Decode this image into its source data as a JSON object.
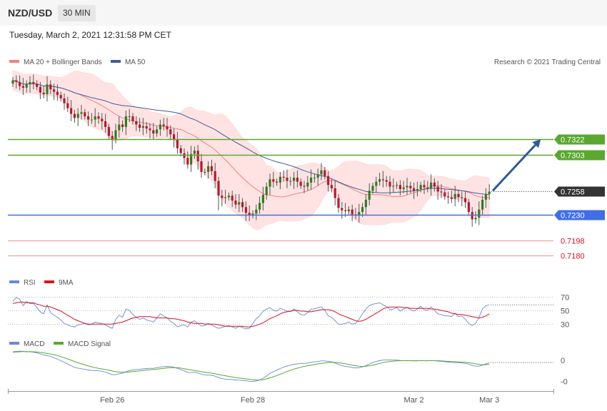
{
  "header": {
    "symbol": "NZD/USD",
    "timeframe": "30 MIN",
    "datetime": "Tuesday, March 2, 2021 12:31:58 PM CET",
    "credit": "Research © 2021 Trading Central"
  },
  "colors": {
    "ma20": "#f08080",
    "bollinger_fill": "#ffe3e3",
    "ma50": "#3a5f9a",
    "resistance": "#5aa82e",
    "support": "#3f6ee8",
    "minor_support": "#f5a0a0",
    "candle_up": "#2f7d1f",
    "candle_down": "#c0152a",
    "arrow": "#2e5b9b",
    "rsi": "#6a87d8",
    "rsi_ma": "#d8141c",
    "macd": "#6a87d8",
    "macd_signal": "#5aa82e"
  },
  "chart_data": [
    {
      "type": "candlestick",
      "legend": [
        "MA 20 + Bollinger Bands",
        "MA 50"
      ],
      "ylim": [
        0.7165,
        0.7405
      ],
      "x_ticks": [
        {
          "label": "Feb 26",
          "index": 29
        },
        {
          "label": "Feb 28",
          "index": 70
        },
        {
          "label": "Mar 2",
          "index": 117
        },
        {
          "label": "Mar 3",
          "index": 139
        }
      ],
      "close": [
        0.7394,
        0.7392,
        0.7387,
        0.7385,
        0.7389,
        0.7392,
        0.739,
        0.7386,
        0.7379,
        0.7377,
        0.7389,
        0.7383,
        0.738,
        0.7376,
        0.7372,
        0.7366,
        0.736,
        0.7353,
        0.7348,
        0.7353,
        0.7355,
        0.735,
        0.7346,
        0.7346,
        0.735,
        0.7347,
        0.7344,
        0.7337,
        0.7326,
        0.7322,
        0.7333,
        0.734,
        0.7337,
        0.735,
        0.735,
        0.7344,
        0.734,
        0.7336,
        0.7338,
        0.7335,
        0.7333,
        0.7329,
        0.7334,
        0.734,
        0.7338,
        0.7334,
        0.7328,
        0.7322,
        0.7311,
        0.7305,
        0.7299,
        0.7291,
        0.7304,
        0.7308,
        0.7295,
        0.7282,
        0.7282,
        0.7289,
        0.7283,
        0.7271,
        0.7253,
        0.725,
        0.7251,
        0.7253,
        0.7247,
        0.7242,
        0.7245,
        0.7239,
        0.7232,
        0.7229,
        0.7231,
        0.7236,
        0.7244,
        0.7254,
        0.7264,
        0.7273,
        0.727,
        0.7269,
        0.7276,
        0.7275,
        0.7271,
        0.7271,
        0.7275,
        0.727,
        0.7265,
        0.7264,
        0.7269,
        0.7275,
        0.7275,
        0.7279,
        0.7284,
        0.7277,
        0.7266,
        0.7262,
        0.725,
        0.7238,
        0.7235,
        0.7234,
        0.7236,
        0.723,
        0.7229,
        0.7233,
        0.7239,
        0.7248,
        0.7259,
        0.7265,
        0.727,
        0.7273,
        0.7272,
        0.727,
        0.7264,
        0.7265,
        0.7266,
        0.7261,
        0.7263,
        0.7265,
        0.7262,
        0.7259,
        0.7261,
        0.7266,
        0.7263,
        0.7262,
        0.7269,
        0.7264,
        0.7258,
        0.7257,
        0.7252,
        0.7251,
        0.7249,
        0.7255,
        0.7251,
        0.725,
        0.7245,
        0.7233,
        0.7224,
        0.7226,
        0.7236,
        0.7248,
        0.7255,
        0.7258
      ],
      "open_first": 0.739,
      "series": [
        {
          "name": "MA 20 + Bollinger Bands"
        },
        {
          "name": "MA 50"
        }
      ],
      "levels": [
        {
          "value": 0.7322,
          "label": "0.7322",
          "kind": "resistance"
        },
        {
          "value": 0.7303,
          "label": "0.7303",
          "kind": "resistance"
        },
        {
          "value": 0.7258,
          "label": "0.7258",
          "kind": "last"
        },
        {
          "value": 0.723,
          "label": "0.7230",
          "kind": "support"
        },
        {
          "value": 0.7198,
          "label": "0.7198",
          "kind": "minor"
        },
        {
          "value": 0.718,
          "label": "0.7180",
          "kind": "minor"
        }
      ],
      "arrow": {
        "from_index": 140,
        "from_value": 0.7259,
        "to_index": 154,
        "to_value": 0.7322
      }
    },
    {
      "type": "line",
      "legend": [
        "RSI",
        "9MA"
      ],
      "ylim": [
        22,
        78
      ],
      "y_ticks": [
        70,
        50,
        30
      ],
      "series": [
        {
          "name": "RSI",
          "values": [
            63,
            69,
            66,
            57,
            63,
            60,
            60,
            54,
            48,
            45,
            58,
            47,
            43,
            40,
            36,
            31,
            29,
            27,
            26,
            29,
            30,
            31,
            29,
            30,
            33,
            32,
            31,
            29,
            26,
            24,
            37,
            43,
            40,
            52,
            50,
            44,
            40,
            37,
            39,
            36,
            35,
            33,
            39,
            45,
            42,
            39,
            34,
            31,
            26,
            28,
            29,
            26,
            33,
            35,
            31,
            27,
            28,
            31,
            29,
            26,
            24,
            25,
            27,
            28,
            26,
            24,
            27,
            25,
            23,
            24,
            31,
            38,
            42,
            49,
            52,
            54,
            50,
            49,
            53,
            51,
            49,
            48,
            52,
            48,
            44,
            43,
            47,
            52,
            52,
            54,
            55,
            50,
            42,
            40,
            35,
            30,
            30,
            31,
            33,
            30,
            31,
            37,
            45,
            52,
            57,
            59,
            60,
            61,
            58,
            56,
            51,
            52,
            54,
            49,
            52,
            54,
            51,
            49,
            52,
            56,
            51,
            50,
            55,
            50,
            45,
            44,
            42,
            42,
            41,
            46,
            41,
            42,
            37,
            31,
            28,
            31,
            40,
            52,
            57,
            58
          ]
        },
        {
          "name": "9MA",
          "values": [
            60,
            61,
            62,
            62,
            61,
            61,
            61,
            59,
            58,
            56,
            56,
            55,
            53,
            51,
            49,
            46,
            43,
            40,
            37,
            35,
            33,
            31,
            30,
            30,
            30,
            30,
            30,
            30,
            30,
            30,
            31,
            32,
            33,
            35,
            37,
            39,
            40,
            41,
            41,
            41,
            41,
            40,
            39,
            39,
            39,
            39,
            38,
            38,
            37,
            36,
            35,
            33,
            32,
            31,
            31,
            31,
            30,
            30,
            30,
            30,
            29,
            28,
            27,
            27,
            27,
            27,
            27,
            27,
            26,
            26,
            27,
            28,
            30,
            32,
            35,
            38,
            40,
            42,
            45,
            47,
            48,
            49,
            50,
            50,
            49,
            49,
            48,
            48,
            49,
            50,
            51,
            51,
            51,
            50,
            48,
            45,
            43,
            41,
            39,
            37,
            35,
            34,
            35,
            37,
            40,
            43,
            46,
            49,
            52,
            54,
            55,
            55,
            55,
            55,
            54,
            54,
            53,
            53,
            53,
            53,
            53,
            53,
            52,
            52,
            51,
            50,
            49,
            48,
            46,
            45,
            44,
            44,
            43,
            42,
            41,
            40,
            39,
            40,
            42,
            45
          ]
        }
      ]
    },
    {
      "type": "line",
      "legend": [
        "MACD",
        "MACD Signal"
      ],
      "ylim": [
        -0.00135,
        0.0005
      ],
      "y_ticks": [
        {
          "value": 0,
          "label": "0"
        },
        {
          "value": -0.001,
          "label": "-0"
        }
      ],
      "series": [
        {
          "name": "MACD",
          "values": [
            0.0004,
            0.00042,
            0.00043,
            0.00042,
            0.0004,
            0.0004,
            0.00038,
            0.00035,
            0.0003,
            0.00025,
            0.00022,
            0.00018,
            0.00012,
            5e-05,
            -2e-05,
            -0.0001,
            -0.00018,
            -0.00026,
            -0.00033,
            -0.00037,
            -0.0004,
            -0.00043,
            -0.00046,
            -0.00048,
            -0.00049,
            -0.0005,
            -0.00052,
            -0.00056,
            -0.00062,
            -0.00068,
            -0.00068,
            -0.00064,
            -0.00061,
            -0.00054,
            -0.00049,
            -0.00046,
            -0.00044,
            -0.00043,
            -0.0004,
            -0.00039,
            -0.00038,
            -0.00038,
            -0.00035,
            -0.00032,
            -0.0003,
            -0.00029,
            -0.0003,
            -0.00033,
            -0.00038,
            -0.00044,
            -0.0005,
            -0.00057,
            -0.00058,
            -0.00057,
            -0.0006,
            -0.00065,
            -0.00069,
            -0.0007,
            -0.00071,
            -0.00075,
            -0.00082,
            -0.00087,
            -0.00089,
            -0.0009,
            -0.00091,
            -0.00093,
            -0.00094,
            -0.00095,
            -0.00097,
            -0.00099,
            -0.001,
            -0.00098,
            -0.00093,
            -0.00085,
            -0.00074,
            -0.00062,
            -0.00054,
            -0.00047,
            -0.00039,
            -0.00032,
            -0.00027,
            -0.00023,
            -0.00019,
            -0.00017,
            -0.00016,
            -0.00015,
            -0.00013,
            -0.0001,
            -8e-05,
            -6e-05,
            -3e-05,
            -3e-05,
            -5e-05,
            -8e-05,
            -0.00013,
            -0.0002,
            -0.00025,
            -0.00029,
            -0.00031,
            -0.00034,
            -0.00036,
            -0.00035,
            -0.00031,
            -0.00025,
            -0.00018,
            -0.00011,
            -6e-05,
            -2e-05,
            1e-05,
            2e-05,
            1e-05,
            1e-05,
            1e-05,
            -1e-05,
            -2e-05,
            -1e-05,
            -2e-05,
            -3e-05,
            -3e-05,
            -1e-05,
            -2e-05,
            -3e-05,
            -1e-05,
            -2e-05,
            -4e-05,
            -5e-05,
            -7e-05,
            -9e-05,
            -0.00011,
            -0.00011,
            -0.00012,
            -0.00013,
            -0.00015,
            -0.00019,
            -0.00025,
            -0.00028,
            -0.00028,
            -0.00023,
            -0.00017,
            -0.00011
          ]
        },
        {
          "name": "MACD Signal",
          "values": [
            0.00038,
            0.00039,
            0.0004,
            0.00041,
            0.00041,
            0.00041,
            0.0004,
            0.00039,
            0.00037,
            0.00035,
            0.00032,
            0.00029,
            0.00026,
            0.00022,
            0.00017,
            0.00012,
            6e-05,
            0.0,
            -6e-05,
            -0.00012,
            -0.00017,
            -0.00022,
            -0.00027,
            -0.00031,
            -0.00035,
            -0.00038,
            -0.00041,
            -0.00044,
            -0.00047,
            -0.00051,
            -0.00054,
            -0.00056,
            -0.00057,
            -0.00057,
            -0.00055,
            -0.00054,
            -0.00052,
            -0.0005,
            -0.00048,
            -0.00046,
            -0.00045,
            -0.00043,
            -0.00042,
            -0.0004,
            -0.00038,
            -0.00036,
            -0.00035,
            -0.00035,
            -0.00035,
            -0.00037,
            -0.0004,
            -0.00043,
            -0.00046,
            -0.00049,
            -0.00051,
            -0.00054,
            -0.00056,
            -0.00059,
            -0.00061,
            -0.00064,
            -0.00067,
            -0.0007,
            -0.00073,
            -0.00076,
            -0.00079,
            -0.00082,
            -0.00084,
            -0.00086,
            -0.00088,
            -0.0009,
            -0.00092,
            -0.00093,
            -0.00093,
            -0.00092,
            -0.00088,
            -0.00083,
            -0.00078,
            -0.00072,
            -0.00066,
            -0.0006,
            -0.00053,
            -0.00047,
            -0.00042,
            -0.00037,
            -0.00033,
            -0.00029,
            -0.00026,
            -0.00023,
            -0.0002,
            -0.00017,
            -0.00015,
            -0.00013,
            -0.00011,
            -0.0001,
            -0.0001,
            -0.00012,
            -0.00014,
            -0.00017,
            -0.0002,
            -0.00023,
            -0.00026,
            -0.00028,
            -0.00029,
            -0.00028,
            -0.00026,
            -0.00023,
            -0.00019,
            -0.00015,
            -0.00011,
            -8e-05,
            -6e-05,
            -4e-05,
            -3e-05,
            -2e-05,
            -2e-05,
            -2e-05,
            -2e-05,
            -2e-05,
            -2e-05,
            -2e-05,
            -2e-05,
            -2e-05,
            -2e-05,
            -2e-05,
            -2e-05,
            -3e-05,
            -4e-05,
            -5e-05,
            -6e-05,
            -7e-05,
            -8e-05,
            -9e-05,
            -0.0001,
            -0.00012,
            -0.00014,
            -0.00017,
            -0.0002,
            -0.00021,
            -0.00021,
            -0.00019
          ]
        }
      ]
    }
  ]
}
